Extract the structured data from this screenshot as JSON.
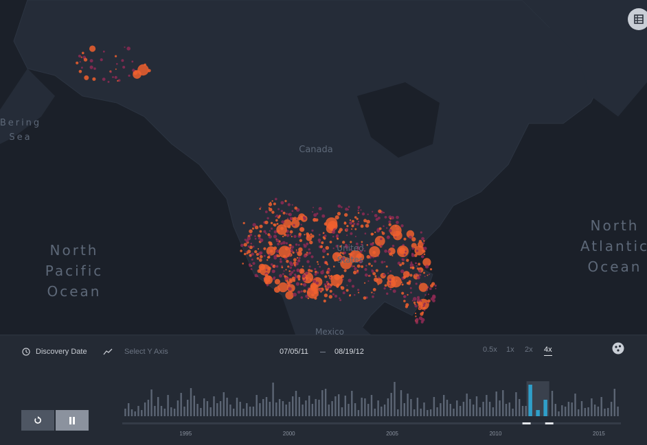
{
  "map": {
    "labels": {
      "canada": "Canada",
      "united_states_line1": "United",
      "united_states_line2": "States",
      "mexico": "Mexico",
      "bering_line1": "Bering",
      "bering_line2": "Sea",
      "npacific_line1": "North",
      "npacific_line2": "Pacific",
      "npacific_line3": "Ocean",
      "natlantic_line1": "North",
      "natlantic_line2": "Atlantic",
      "natlantic_line3": "Ocean"
    },
    "colors": {
      "point_large": "#f0602e",
      "point_small": "#8e2a55",
      "land": "#252c38",
      "water": "#1b2029"
    },
    "layer_button_icon": "layers-list-icon"
  },
  "timeline": {
    "x_field": "Discovery Date",
    "y_axis_placeholder": "Select Y Axis",
    "start_date": "07/05/11",
    "end_date": "08/19/12",
    "speeds": [
      "0.5x",
      "1x",
      "2x",
      "4x"
    ],
    "active_speed": "4x",
    "reset_icon": "reset-icon",
    "pause_icon": "pause-icon",
    "clock_icon": "clock-icon",
    "trend_icon": "trend-line-icon",
    "settings_icon": "settings-icon"
  },
  "chart_data": {
    "type": "bar",
    "x_ticks": [
      "1995",
      "2000",
      "2005",
      "2010",
      "2015"
    ],
    "xlim": [
      1992.0,
      2016.0
    ],
    "bar_heights_relative": [
      0.22,
      0.38,
      0.2,
      0.14,
      0.3,
      0.18,
      0.4,
      0.48,
      0.78,
      0.3,
      0.56,
      0.3,
      0.22,
      0.62,
      0.26,
      0.22,
      0.46,
      0.68,
      0.28,
      0.48,
      0.82,
      0.6,
      0.36,
      0.24,
      0.52,
      0.44,
      0.26,
      0.58,
      0.38,
      0.44,
      0.7,
      0.54,
      0.34,
      0.22,
      0.54,
      0.42,
      0.22,
      0.38,
      0.28,
      0.28,
      0.62,
      0.38,
      0.5,
      0.56,
      0.42,
      0.98,
      0.4,
      0.5,
      0.44,
      0.34,
      0.42,
      0.58,
      0.74,
      0.56,
      0.34,
      0.46,
      0.6,
      0.36,
      0.5,
      0.48,
      0.76,
      0.8,
      0.34,
      0.44,
      0.58,
      0.64,
      0.26,
      0.6,
      0.36,
      0.74,
      0.38,
      0.18,
      0.54,
      0.52,
      0.36,
      0.62,
      0.22,
      0.46,
      0.28,
      0.34,
      0.52,
      0.68,
      1.0,
      0.2,
      0.76,
      0.38,
      0.66,
      0.5,
      0.2,
      0.54,
      0.22,
      0.4,
      0.18,
      0.2,
      0.56,
      0.26,
      0.38,
      0.62,
      0.48,
      0.36,
      0.22,
      0.46,
      0.3,
      0.42,
      0.66,
      0.5,
      0.34,
      0.58,
      0.26,
      0.42,
      0.62,
      0.42,
      0.26,
      0.72,
      0.46,
      0.76,
      0.36,
      0.4,
      0.22,
      0.7,
      0.5,
      0.3,
      0.3,
      0.54,
      0.4,
      0.28,
      0.6,
      0.72,
      0.36,
      0.36,
      0.74,
      0.36,
      0.14,
      0.32,
      0.28,
      0.42,
      0.4,
      0.66,
      0.2,
      0.44,
      0.24,
      0.26,
      0.52,
      0.34,
      0.28,
      0.56,
      0.22,
      0.24,
      0.42,
      0.8,
      0.28
    ],
    "selected_range": [
      2011.5,
      2012.6
    ],
    "selected_bars": [
      0.92,
      0.18,
      0.48
    ],
    "colors": {
      "bar": "#5c6574",
      "selected_bar": "#2f9fc9",
      "selection_bg": "#3a414d"
    },
    "grid": false
  }
}
